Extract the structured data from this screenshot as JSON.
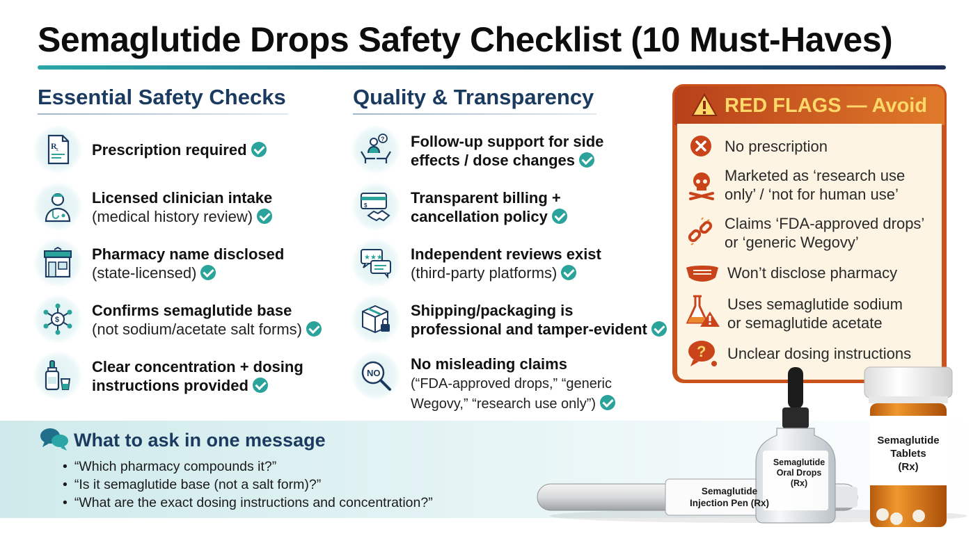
{
  "title": "Semaglutide Drops Safety Checklist (10 Must-Haves)",
  "colors": {
    "teal": "#2aa39a",
    "navy": "#1b3a5f",
    "red_flag_border": "#c9521d",
    "red_flag_title": "#ffd86a"
  },
  "essential": {
    "heading": "Essential Safety Checks",
    "items": [
      {
        "icon": "prescription-icon",
        "bold": "Prescription required",
        "sub": ""
      },
      {
        "icon": "clinician-icon",
        "bold": "Licensed clinician intake",
        "sub": "(medical history review)"
      },
      {
        "icon": "pharmacy-icon",
        "bold": "Pharmacy name disclosed",
        "sub": "(state-licensed)"
      },
      {
        "icon": "molecule-icon",
        "bold": "Confirms semaglutide base",
        "sub": "(not sodium/acetate salt forms)"
      },
      {
        "icon": "dropper-bottle-icon",
        "bold1": "Clear concentration + dosing",
        "bold2": "instructions provided"
      }
    ]
  },
  "quality": {
    "heading": "Quality & Transparency",
    "items": [
      {
        "icon": "support-hands-icon",
        "bold1": "Follow-up support for side",
        "bold2": "effects / dose changes"
      },
      {
        "icon": "billing-handshake-icon",
        "bold1": "Transparent billing +",
        "bold2": "cancellation policy"
      },
      {
        "icon": "reviews-icon",
        "bold": "Independent reviews exist",
        "sub": "(third-party platforms)"
      },
      {
        "icon": "package-lock-icon",
        "bold1": "Shipping/packaging is",
        "bold2": "professional and tamper-evident"
      },
      {
        "icon": "no-magnifier-icon",
        "bold": "No misleading claims",
        "sub1": "(“FDA-approved drops,” “generic",
        "sub2": "Wegovy,” “research use only”)",
        "icon_text": "NO"
      }
    ]
  },
  "red_flags": {
    "heading": "RED FLAGS — Avoid",
    "items": [
      {
        "icon": "x-circle-icon",
        "line1": "No prescription"
      },
      {
        "icon": "skull-icon",
        "line1": "Marketed as ‘research use",
        "line2": "only’ / ‘not for human use’"
      },
      {
        "icon": "broken-link-icon",
        "line1": "Claims ‘FDA-approved drops’",
        "line2": "or ‘generic Wegovy’"
      },
      {
        "icon": "mask-icon",
        "line1": "Won’t disclose pharmacy"
      },
      {
        "icon": "flask-warning-icon",
        "line1": "Uses semaglutide sodium",
        "line2": "or semaglutide acetate"
      },
      {
        "icon": "question-bubble-icon",
        "line1": "Unclear dosing instructions"
      }
    ]
  },
  "ask": {
    "heading": "What to ask in one message",
    "icon": "chat-bubbles-icon",
    "questions": [
      "“Which pharmacy compounds it?”",
      "“Is it semaglutide base (not a salt form)?”",
      "“What are the exact dosing instructions and concentration?”"
    ]
  },
  "products": {
    "pen": {
      "line1": "Semaglutide",
      "line2": "Injection Pen (Rx)"
    },
    "drops": {
      "line1": "Semaglutide",
      "line2": "Oral Drops",
      "line3": "(Rx)"
    },
    "tablets": {
      "line1": "Semaglutide",
      "line2": "Tablets",
      "line3": "(Rx)"
    }
  }
}
